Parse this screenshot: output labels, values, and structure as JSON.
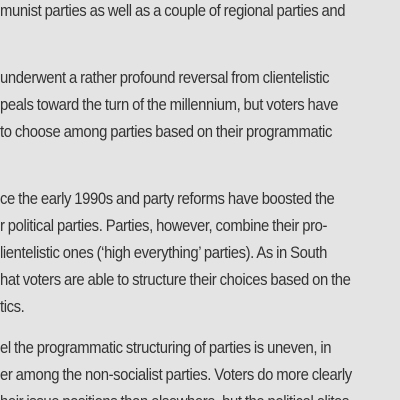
{
  "paragraphs": [
    {
      "lines": [
        "munist parties as well as a couple of regional parties and"
      ]
    },
    {
      "lines": [
        "underwent a rather profound reversal from clientelistic",
        "peals toward the turn of the millennium, but voters have",
        "to choose among parties based on their programmatic"
      ]
    },
    {
      "lines": [
        "ce the early 1990s and party reforms have boosted the",
        "r political parties. Parties, however, combine their pro-",
        "lientelistic ones (‘high everything’ parties). As in South",
        "hat voters are able to structure their choices based on the",
        "tics."
      ]
    },
    {
      "lines": [
        "el the programmatic structuring of parties is uneven, in",
        "er among the non-socialist parties. Voters do more clearly",
        "heir issue positions than elsewhere, but the political elites"
      ]
    }
  ]
}
